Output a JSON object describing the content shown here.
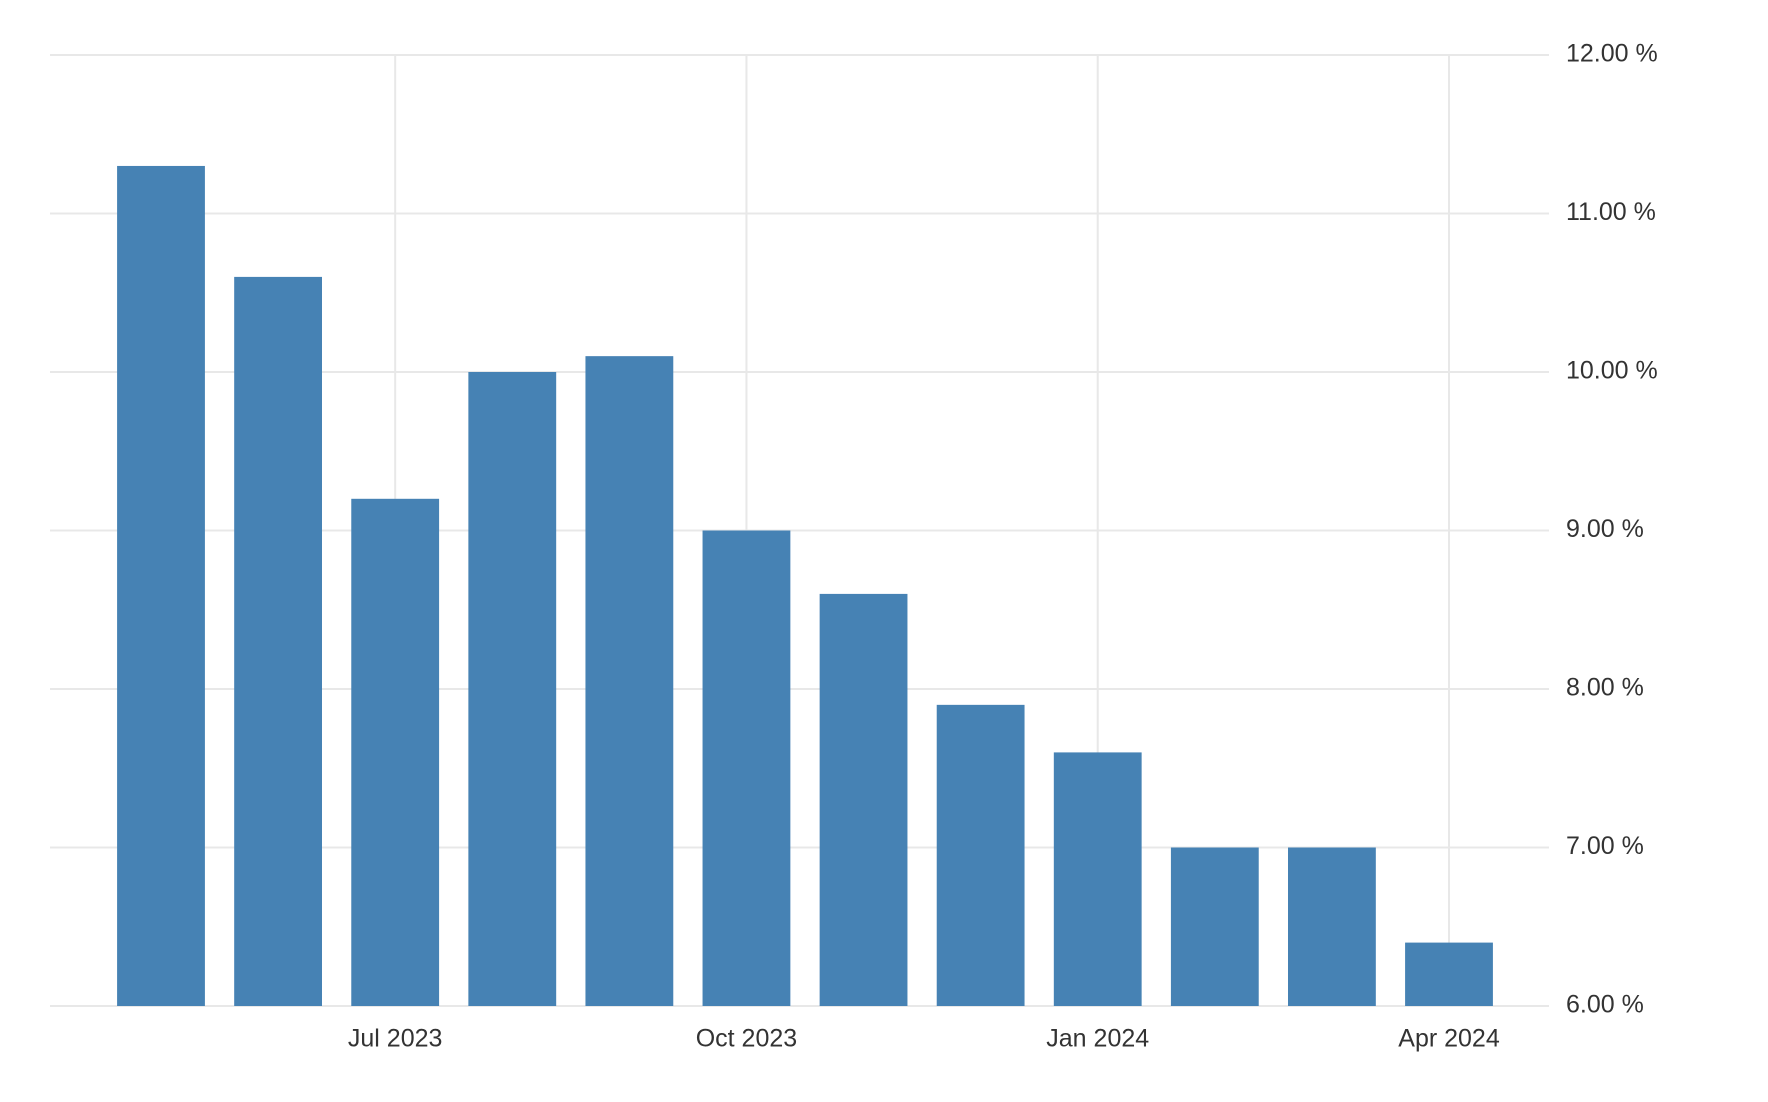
{
  "chart_data": {
    "type": "bar",
    "categories": [
      null,
      null,
      "Jul 2023",
      null,
      null,
      "Oct 2023",
      null,
      null,
      "Jan 2024",
      null,
      null,
      "Apr 2024"
    ],
    "values": [
      11.3,
      10.6,
      9.2,
      10.0,
      10.1,
      9.0,
      8.6,
      7.9,
      7.6,
      7.0,
      7.0,
      6.4
    ],
    "color": "#4682b4",
    "ylim": [
      6,
      12
    ],
    "yticks": [
      {
        "value": 6,
        "label": "6.00 %"
      },
      {
        "value": 7,
        "label": "7.00 %"
      },
      {
        "value": 8,
        "label": "8.00 %"
      },
      {
        "value": 9,
        "label": "9.00 %"
      },
      {
        "value": 10,
        "label": "10.00 %"
      },
      {
        "value": 11,
        "label": "11.00 %"
      },
      {
        "value": 12,
        "label": "12.00 %"
      }
    ],
    "grid": true
  }
}
